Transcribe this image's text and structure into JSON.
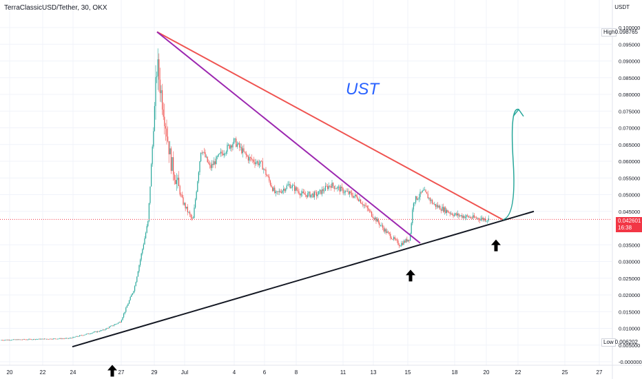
{
  "header": {
    "title": "TerraClassicUSD/Tether, 30, OKX"
  },
  "annotation": {
    "ust_label": "UST"
  },
  "axis": {
    "currency": "USDT",
    "high_label": "High",
    "high_value": "0.098765",
    "low_label": "Low",
    "low_value": "0.006202",
    "current_price": "0.042601",
    "countdown": "16:38"
  },
  "colors": {
    "up": "#26a69a",
    "down": "#ef5350",
    "red_line": "#ef5350",
    "purple_line": "#9c27b0",
    "support_line": "#131722",
    "arrow_green": "#26a69a",
    "ust": "#2962ff",
    "price_line": "#f23645"
  },
  "chart_data": {
    "type": "candlestick",
    "ylim": [
      -0.0,
      0.1
    ],
    "y_ticks": [
      "0.100000",
      "0.095000",
      "0.090000",
      "0.085000",
      "0.080000",
      "0.075000",
      "0.070000",
      "0.065000",
      "0.060000",
      "0.055000",
      "0.050000",
      "0.045000",
      "0.035000",
      "0.030000",
      "0.025000",
      "0.020000",
      "0.015000",
      "0.010000",
      "0.005000",
      "-0.000000"
    ],
    "x_ticks": [
      "20",
      "22",
      "24",
      "27",
      "29",
      "Jul",
      "4",
      "6",
      "8",
      "11",
      "13",
      "15",
      "18",
      "20",
      "22",
      "25",
      "27"
    ],
    "price_path": [
      [
        0,
        0.0065
      ],
      [
        100,
        0.007
      ],
      [
        150,
        0.0095
      ],
      [
        175,
        0.012
      ],
      [
        195,
        0.022
      ],
      [
        215,
        0.042
      ],
      [
        228,
        0.089
      ],
      [
        238,
        0.075
      ],
      [
        248,
        0.06
      ],
      [
        265,
        0.048
      ],
      [
        280,
        0.042
      ],
      [
        292,
        0.064
      ],
      [
        305,
        0.058
      ],
      [
        320,
        0.062
      ],
      [
        340,
        0.066
      ],
      [
        360,
        0.061
      ],
      [
        380,
        0.059
      ],
      [
        400,
        0.05
      ],
      [
        420,
        0.053
      ],
      [
        440,
        0.05
      ],
      [
        460,
        0.05
      ],
      [
        480,
        0.053
      ],
      [
        500,
        0.051
      ],
      [
        520,
        0.049
      ],
      [
        540,
        0.044
      ],
      [
        560,
        0.039
      ],
      [
        580,
        0.035
      ],
      [
        595,
        0.037
      ],
      [
        600,
        0.048
      ],
      [
        615,
        0.051
      ],
      [
        630,
        0.047
      ],
      [
        660,
        0.044
      ],
      [
        690,
        0.043
      ],
      [
        710,
        0.0426
      ]
    ],
    "trend_lines": [
      {
        "name": "red-resistance",
        "points": [
          [
            228,
            0.0987
          ],
          [
            730,
            0.0425
          ]
        ]
      },
      {
        "name": "purple-resistance",
        "points": [
          [
            228,
            0.0987
          ],
          [
            610,
            0.0355
          ]
        ]
      },
      {
        "name": "support",
        "points": [
          [
            105,
            0.0045
          ],
          [
            775,
            0.045
          ]
        ]
      }
    ],
    "projection": {
      "points": [
        [
          730,
          0.0425
        ],
        [
          745,
          0.06
        ],
        [
          753,
          0.0755
        ]
      ]
    },
    "marker_arrows": [
      [
        163,
        -0.003
      ],
      [
        596,
        0.0255
      ],
      [
        720,
        0.0345
      ]
    ]
  }
}
